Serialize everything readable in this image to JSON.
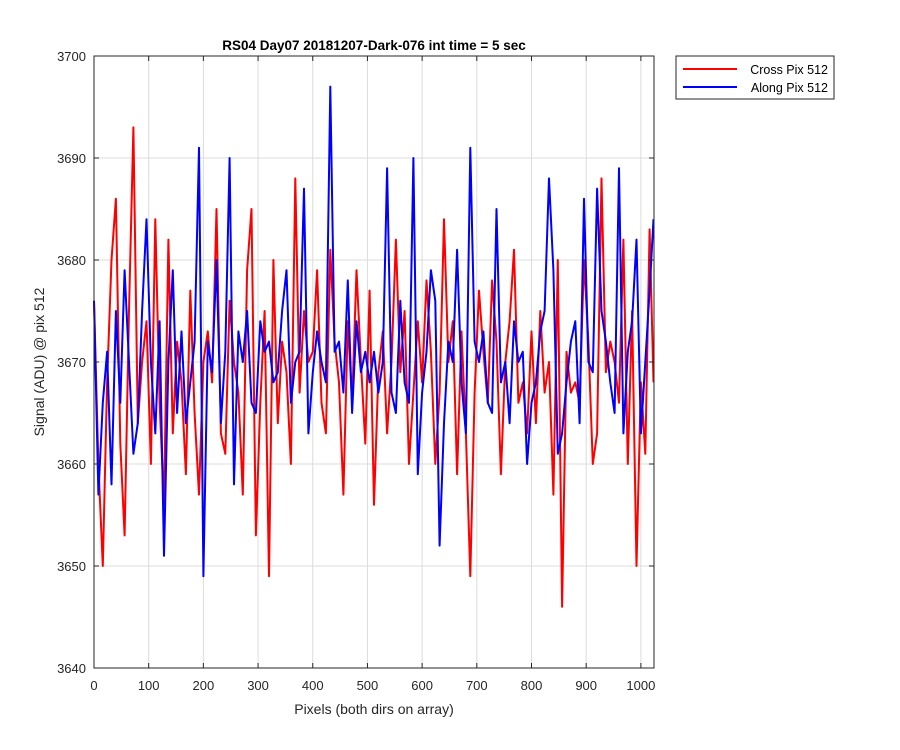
{
  "chart_data": {
    "type": "line",
    "title": "RS04 Day07 20181207-Dark-076 int time = 5 sec",
    "xlabel": "Pixels (both dirs on array)",
    "ylabel": "Signal (ADU) @ pix 512",
    "xlim": [
      0,
      1024
    ],
    "ylim": [
      3640,
      3700
    ],
    "xticks": [
      0,
      100,
      200,
      300,
      400,
      500,
      600,
      700,
      800,
      900,
      1000
    ],
    "yticks": [
      3640,
      3650,
      3660,
      3670,
      3680,
      3690,
      3700
    ],
    "grid": true,
    "legend_position": "outside-top-right",
    "series": [
      {
        "name": "Cross Pix 512",
        "color": "#ff0000",
        "x": [
          0,
          8,
          16,
          24,
          32,
          40,
          48,
          56,
          64,
          72,
          80,
          88,
          96,
          104,
          112,
          120,
          128,
          136,
          144,
          152,
          160,
          168,
          176,
          184,
          192,
          200,
          208,
          216,
          224,
          232,
          240,
          248,
          256,
          264,
          272,
          280,
          288,
          296,
          304,
          312,
          320,
          328,
          336,
          344,
          352,
          360,
          368,
          376,
          384,
          392,
          400,
          408,
          416,
          424,
          432,
          440,
          448,
          456,
          464,
          472,
          480,
          488,
          496,
          504,
          512,
          520,
          528,
          536,
          544,
          552,
          560,
          568,
          576,
          584,
          592,
          600,
          608,
          616,
          624,
          632,
          640,
          648,
          656,
          664,
          672,
          680,
          688,
          696,
          704,
          712,
          720,
          728,
          736,
          744,
          752,
          760,
          768,
          776,
          784,
          792,
          800,
          808,
          816,
          824,
          832,
          840,
          848,
          856,
          864,
          872,
          880,
          888,
          896,
          904,
          912,
          920,
          928,
          936,
          944,
          952,
          960,
          968,
          976,
          984,
          992,
          1000,
          1008,
          1016,
          1023
        ],
        "y": [
          3676,
          3660,
          3650,
          3668,
          3680,
          3686,
          3662,
          3653,
          3675,
          3693,
          3664,
          3670,
          3674,
          3660,
          3684,
          3666,
          3656,
          3682,
          3663,
          3672,
          3668,
          3659,
          3677,
          3665,
          3657,
          3670,
          3673,
          3668,
          3685,
          3663,
          3661,
          3676,
          3670,
          3667,
          3657,
          3679,
          3685,
          3653,
          3666,
          3675,
          3649,
          3680,
          3664,
          3672,
          3669,
          3660,
          3688,
          3667,
          3675,
          3670,
          3671,
          3679,
          3666,
          3663,
          3681,
          3672,
          3668,
          3657,
          3674,
          3666,
          3679,
          3670,
          3662,
          3677,
          3656,
          3669,
          3673,
          3663,
          3670,
          3682,
          3669,
          3675,
          3660,
          3667,
          3674,
          3668,
          3678,
          3671,
          3660,
          3667,
          3684,
          3670,
          3674,
          3659,
          3673,
          3663,
          3649,
          3667,
          3677,
          3671,
          3666,
          3678,
          3672,
          3659,
          3670,
          3674,
          3681,
          3666,
          3668,
          3663,
          3673,
          3664,
          3675,
          3667,
          3670,
          3657,
          3680,
          3646,
          3671,
          3667,
          3668,
          3666,
          3680,
          3672,
          3660,
          3663,
          3688,
          3669,
          3672,
          3670,
          3666,
          3682,
          3660,
          3675,
          3650,
          3668,
          3661,
          3683,
          3668
        ]
      },
      {
        "name": "Along Pix 512",
        "color": "#0000ff",
        "x": [
          0,
          8,
          16,
          24,
          32,
          40,
          48,
          56,
          64,
          72,
          80,
          88,
          96,
          104,
          112,
          120,
          128,
          136,
          144,
          152,
          160,
          168,
          176,
          184,
          192,
          200,
          208,
          216,
          224,
          232,
          240,
          248,
          256,
          264,
          272,
          280,
          288,
          296,
          304,
          312,
          320,
          328,
          336,
          344,
          352,
          360,
          368,
          376,
          384,
          392,
          400,
          408,
          416,
          424,
          432,
          440,
          448,
          456,
          464,
          472,
          480,
          488,
          496,
          504,
          512,
          520,
          528,
          536,
          544,
          552,
          560,
          568,
          576,
          584,
          592,
          600,
          608,
          616,
          624,
          632,
          640,
          648,
          656,
          664,
          672,
          680,
          688,
          696,
          704,
          712,
          720,
          728,
          736,
          744,
          752,
          760,
          768,
          776,
          784,
          792,
          800,
          808,
          816,
          824,
          832,
          840,
          848,
          856,
          864,
          872,
          880,
          888,
          896,
          904,
          912,
          920,
          928,
          936,
          944,
          952,
          960,
          968,
          976,
          984,
          992,
          1000,
          1008,
          1016,
          1023
        ],
        "y": [
          3676,
          3657,
          3666,
          3671,
          3658,
          3675,
          3666,
          3679,
          3670,
          3661,
          3664,
          3675,
          3684,
          3670,
          3663,
          3674,
          3651,
          3670,
          3679,
          3665,
          3673,
          3664,
          3668,
          3672,
          3691,
          3649,
          3672,
          3669,
          3680,
          3664,
          3671,
          3690,
          3658,
          3673,
          3670,
          3675,
          3666,
          3665,
          3674,
          3671,
          3672,
          3668,
          3669,
          3675,
          3679,
          3666,
          3670,
          3671,
          3687,
          3663,
          3669,
          3673,
          3670,
          3668,
          3697,
          3671,
          3672,
          3667,
          3678,
          3665,
          3674,
          3669,
          3671,
          3668,
          3671,
          3667,
          3670,
          3689,
          3667,
          3665,
          3676,
          3668,
          3666,
          3690,
          3659,
          3667,
          3671,
          3679,
          3676,
          3652,
          3664,
          3672,
          3670,
          3681,
          3668,
          3663,
          3691,
          3672,
          3670,
          3673,
          3666,
          3665,
          3685,
          3668,
          3670,
          3664,
          3674,
          3670,
          3671,
          3660,
          3666,
          3668,
          3673,
          3675,
          3688,
          3679,
          3661,
          3663,
          3668,
          3672,
          3674,
          3664,
          3686,
          3670,
          3669,
          3687,
          3675,
          3672,
          3668,
          3665,
          3689,
          3663,
          3671,
          3674,
          3682,
          3663,
          3670,
          3677,
          3684
        ]
      }
    ]
  }
}
